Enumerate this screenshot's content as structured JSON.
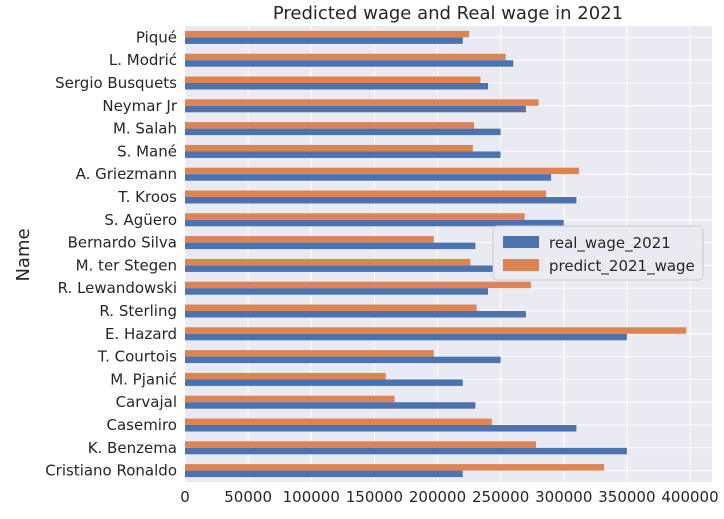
{
  "chart_data": {
    "type": "bar",
    "orientation": "horizontal",
    "title": "Predicted wage and Real wage in 2021",
    "xlabel": "",
    "ylabel": "Name",
    "xlim": [
      0,
      410000
    ],
    "xticks": [
      0,
      50000,
      100000,
      150000,
      200000,
      250000,
      300000,
      350000,
      400000
    ],
    "categories": [
      "Piqué",
      "L. Modrić",
      "Sergio Busquets",
      "Neymar Jr",
      "M. Salah",
      "S. Mané",
      "A. Griezmann",
      "T. Kroos",
      "S. Agüero",
      "Bernardo Silva",
      "M. ter Stegen",
      "R. Lewandowski",
      "R. Sterling",
      "E. Hazard",
      "T. Courtois",
      "M. Pjanić",
      "Carvajal",
      "Casemiro",
      "K. Benzema",
      "Cristiano Ronaldo"
    ],
    "series": [
      {
        "name": "real_wage_2021",
        "color": "#4c72b0",
        "values": [
          220000,
          260000,
          240000,
          270000,
          250000,
          250000,
          290000,
          310000,
          300000,
          230000,
          250000,
          240000,
          270000,
          350000,
          250000,
          220000,
          230000,
          310000,
          350000,
          220000
        ]
      },
      {
        "name": "predict_2021_wage",
        "color": "#dd8452",
        "values": [
          225000,
          254000,
          234000,
          280000,
          229000,
          228000,
          312000,
          286000,
          269000,
          197000,
          226000,
          274000,
          231000,
          397000,
          197000,
          159000,
          166000,
          243000,
          278000,
          332000
        ]
      }
    ],
    "grid": true,
    "background": "#eaeaf2",
    "legend_position": "center-right"
  }
}
